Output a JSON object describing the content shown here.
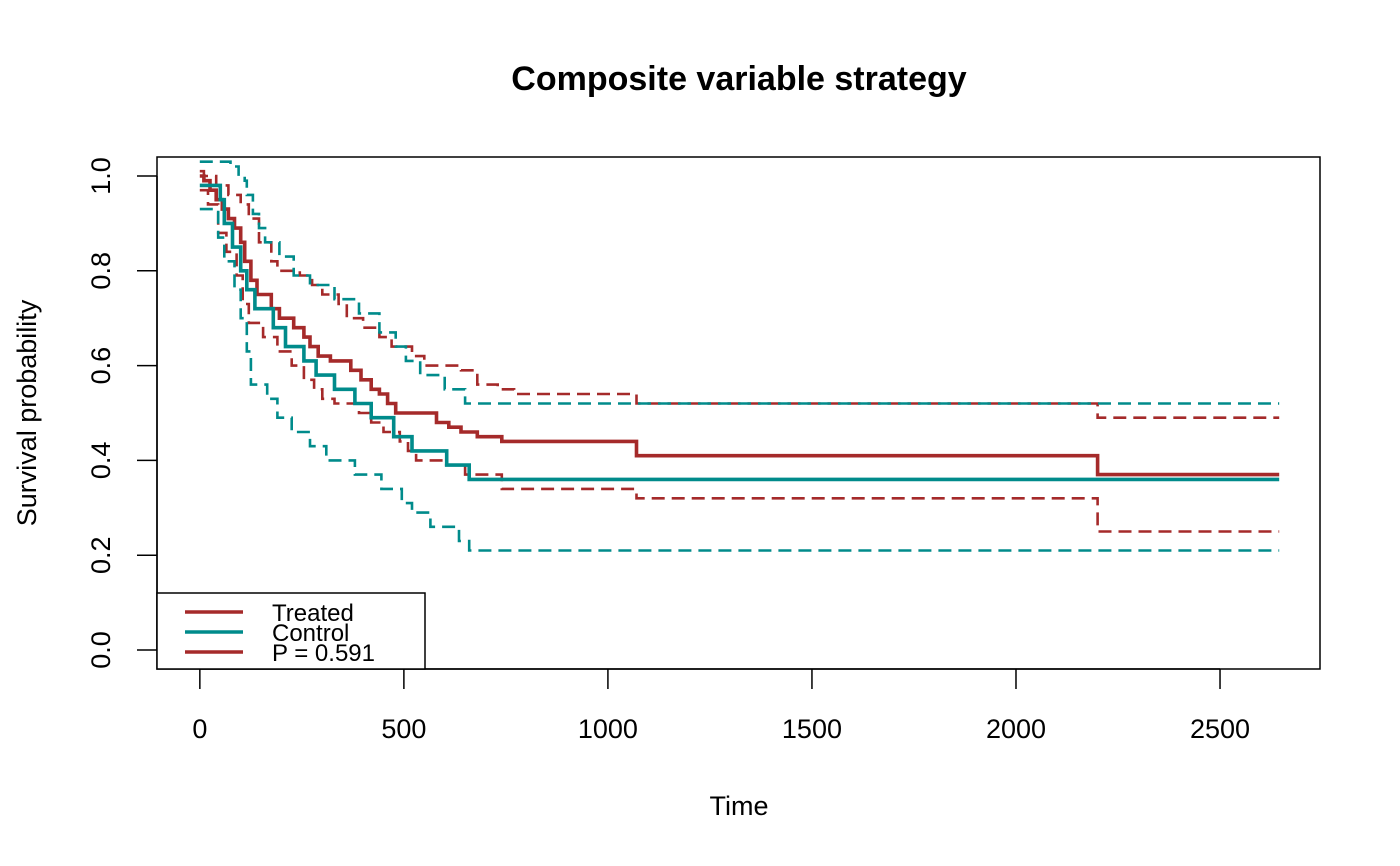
{
  "chart_data": {
    "type": "line",
    "title": "Composite variable strategy",
    "xlabel": "Time",
    "ylabel": "Survival probability",
    "xlim": [
      -105,
      2745
    ],
    "ylim": [
      -0.04,
      1.04
    ],
    "xticks": [
      0,
      500,
      1000,
      1500,
      2000,
      2500
    ],
    "yticks": [
      0.0,
      0.2,
      0.4,
      0.6,
      0.8,
      1.0
    ],
    "grid": false,
    "legend": {
      "position": "bottom-left",
      "entries": [
        "Treated",
        "Control",
        "P = 0.591"
      ]
    },
    "colors": {
      "Treated": "#A52A2A",
      "Control": "#008B8B"
    },
    "series": [
      {
        "name": "Treated",
        "color": "#A52A2A",
        "style": "solid",
        "steps": [
          [
            0,
            1.0
          ],
          [
            10,
            0.99
          ],
          [
            25,
            0.97
          ],
          [
            40,
            0.95
          ],
          [
            55,
            0.93
          ],
          [
            70,
            0.91
          ],
          [
            85,
            0.89
          ],
          [
            100,
            0.86
          ],
          [
            110,
            0.82
          ],
          [
            125,
            0.78
          ],
          [
            140,
            0.75
          ],
          [
            175,
            0.72
          ],
          [
            195,
            0.7
          ],
          [
            230,
            0.68
          ],
          [
            255,
            0.66
          ],
          [
            270,
            0.64
          ],
          [
            290,
            0.62
          ],
          [
            320,
            0.61
          ],
          [
            370,
            0.59
          ],
          [
            395,
            0.57
          ],
          [
            420,
            0.55
          ],
          [
            440,
            0.54
          ],
          [
            460,
            0.52
          ],
          [
            480,
            0.5
          ],
          [
            580,
            0.48
          ],
          [
            610,
            0.47
          ],
          [
            640,
            0.46
          ],
          [
            680,
            0.45
          ],
          [
            740,
            0.44
          ],
          [
            1070,
            0.41
          ],
          [
            2200,
            0.37
          ],
          [
            2645,
            0.37
          ]
        ]
      },
      {
        "name": "Treated upper 95% CI",
        "color": "#A52A2A",
        "style": "dashed",
        "steps": [
          [
            0,
            1.01
          ],
          [
            10,
            1.0
          ],
          [
            40,
            0.98
          ],
          [
            70,
            0.96
          ],
          [
            100,
            0.94
          ],
          [
            120,
            0.91
          ],
          [
            145,
            0.86
          ],
          [
            175,
            0.82
          ],
          [
            190,
            0.8
          ],
          [
            245,
            0.79
          ],
          [
            275,
            0.77
          ],
          [
            300,
            0.75
          ],
          [
            340,
            0.73
          ],
          [
            360,
            0.7
          ],
          [
            400,
            0.68
          ],
          [
            440,
            0.66
          ],
          [
            470,
            0.64
          ],
          [
            520,
            0.62
          ],
          [
            550,
            0.6
          ],
          [
            640,
            0.59
          ],
          [
            680,
            0.56
          ],
          [
            730,
            0.55
          ],
          [
            770,
            0.54
          ],
          [
            1070,
            0.52
          ],
          [
            2200,
            0.49
          ],
          [
            2645,
            0.49
          ]
        ]
      },
      {
        "name": "Treated lower 95% CI",
        "color": "#A52A2A",
        "style": "dashed",
        "steps": [
          [
            0,
            0.97
          ],
          [
            20,
            0.94
          ],
          [
            45,
            0.88
          ],
          [
            65,
            0.84
          ],
          [
            90,
            0.79
          ],
          [
            105,
            0.73
          ],
          [
            120,
            0.69
          ],
          [
            155,
            0.66
          ],
          [
            190,
            0.63
          ],
          [
            225,
            0.6
          ],
          [
            255,
            0.57
          ],
          [
            280,
            0.55
          ],
          [
            300,
            0.53
          ],
          [
            330,
            0.52
          ],
          [
            390,
            0.5
          ],
          [
            420,
            0.48
          ],
          [
            450,
            0.46
          ],
          [
            490,
            0.44
          ],
          [
            510,
            0.42
          ],
          [
            530,
            0.4
          ],
          [
            600,
            0.39
          ],
          [
            650,
            0.37
          ],
          [
            740,
            0.34
          ],
          [
            1070,
            0.32
          ],
          [
            2200,
            0.25
          ],
          [
            2645,
            0.25
          ]
        ]
      },
      {
        "name": "Control",
        "color": "#008B8B",
        "style": "solid",
        "steps": [
          [
            0,
            0.98
          ],
          [
            50,
            0.95
          ],
          [
            60,
            0.9
          ],
          [
            80,
            0.85
          ],
          [
            100,
            0.8
          ],
          [
            115,
            0.76
          ],
          [
            135,
            0.72
          ],
          [
            180,
            0.68
          ],
          [
            210,
            0.64
          ],
          [
            255,
            0.61
          ],
          [
            285,
            0.58
          ],
          [
            330,
            0.55
          ],
          [
            380,
            0.52
          ],
          [
            420,
            0.49
          ],
          [
            475,
            0.45
          ],
          [
            520,
            0.42
          ],
          [
            605,
            0.39
          ],
          [
            660,
            0.36
          ],
          [
            2645,
            0.36
          ]
        ]
      },
      {
        "name": "Control upper 95% CI",
        "color": "#008B8B",
        "style": "dashed",
        "steps": [
          [
            0,
            1.03
          ],
          [
            75,
            1.02
          ],
          [
            95,
            1.0
          ],
          [
            110,
            0.99
          ],
          [
            115,
            0.96
          ],
          [
            130,
            0.92
          ],
          [
            145,
            0.89
          ],
          [
            160,
            0.86
          ],
          [
            195,
            0.83
          ],
          [
            230,
            0.79
          ],
          [
            270,
            0.77
          ],
          [
            330,
            0.74
          ],
          [
            390,
            0.71
          ],
          [
            440,
            0.67
          ],
          [
            480,
            0.64
          ],
          [
            505,
            0.61
          ],
          [
            540,
            0.58
          ],
          [
            600,
            0.55
          ],
          [
            650,
            0.52
          ],
          [
            2645,
            0.52
          ]
        ]
      },
      {
        "name": "Control lower 95% CI",
        "color": "#008B8B",
        "style": "dashed",
        "steps": [
          [
            0,
            0.93
          ],
          [
            45,
            0.87
          ],
          [
            60,
            0.82
          ],
          [
            85,
            0.76
          ],
          [
            100,
            0.7
          ],
          [
            115,
            0.63
          ],
          [
            125,
            0.56
          ],
          [
            165,
            0.53
          ],
          [
            190,
            0.49
          ],
          [
            225,
            0.46
          ],
          [
            270,
            0.43
          ],
          [
            310,
            0.4
          ],
          [
            380,
            0.37
          ],
          [
            445,
            0.34
          ],
          [
            495,
            0.31
          ],
          [
            520,
            0.29
          ],
          [
            565,
            0.26
          ],
          [
            635,
            0.23
          ],
          [
            660,
            0.21
          ],
          [
            2645,
            0.21
          ]
        ]
      }
    ]
  }
}
